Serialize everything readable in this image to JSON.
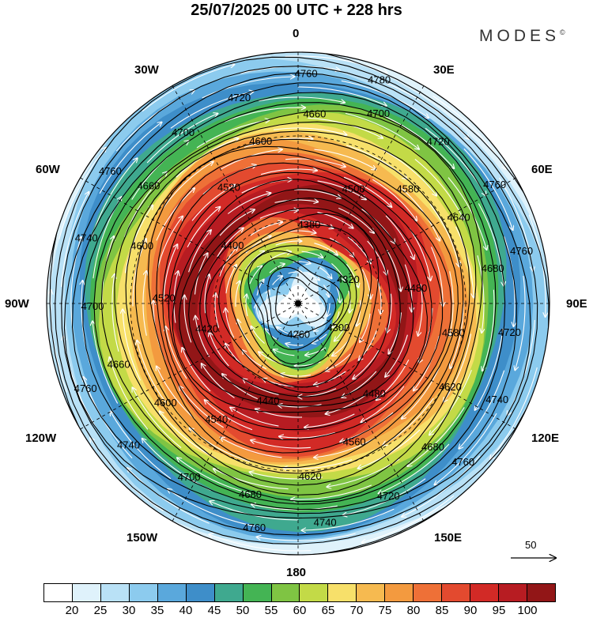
{
  "title": "25/07/2025  00 UTC  + 228 hrs",
  "brand": {
    "name": "MODES",
    "mark": "©"
  },
  "longitude_labels": {
    "top": "0",
    "upper_left": "30W",
    "upper_right": "30E",
    "mid_left_upper": "60W",
    "mid_right_upper": "60E",
    "left": "90W",
    "right": "90E",
    "lower_left": "120W",
    "lower_right": "120E",
    "bottom_left": "150W",
    "bottom_right": "150E",
    "bottom": "180"
  },
  "contour_labels": [
    "4780",
    "4760",
    "4760",
    "4760",
    "4760",
    "4760",
    "4760",
    "4760",
    "4740",
    "4740",
    "4740",
    "4740",
    "4720",
    "4720",
    "4720",
    "4720",
    "4700",
    "4700",
    "4700",
    "4700",
    "4680",
    "4680",
    "4680",
    "4660",
    "4660",
    "4660",
    "4640",
    "4620",
    "4620",
    "4600",
    "4600",
    "4600",
    "4580",
    "4580",
    "4560",
    "4540",
    "4520",
    "4520",
    "4500",
    "4480",
    "4480",
    "4440",
    "4420",
    "4400",
    "4380",
    "4320",
    "4300",
    "4260"
  ],
  "wind_reference": {
    "value": "50"
  },
  "colorbar": {
    "colors": [
      "#ffffff",
      "#dff2fb",
      "#b9e1f6",
      "#8ccbee",
      "#5aa8dc",
      "#3e8ec9",
      "#3fa98f",
      "#44b454",
      "#7fc443",
      "#c3da47",
      "#f7e06a",
      "#f6ba50",
      "#f39a3f",
      "#ee7037",
      "#e34a2f",
      "#d22a26",
      "#b71c22",
      "#921617"
    ],
    "labels": [
      "20",
      "25",
      "30",
      "35",
      "40",
      "45",
      "50",
      "55",
      "60",
      "65",
      "70",
      "75",
      "80",
      "85",
      "90",
      "95",
      "100"
    ]
  }
}
